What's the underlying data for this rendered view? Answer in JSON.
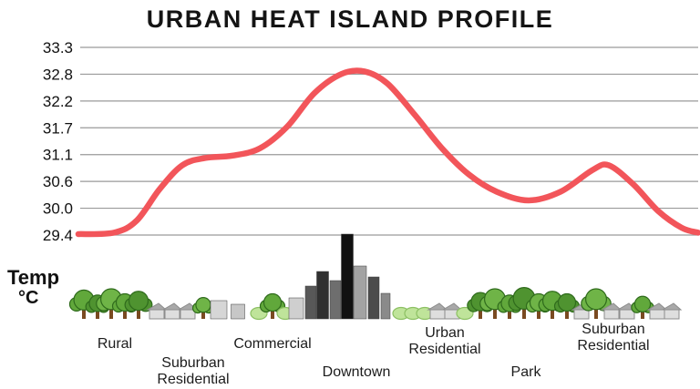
{
  "title": "URBAN HEAT ISLAND PROFILE",
  "y_axis": {
    "word": "Temp",
    "unit": "°C"
  },
  "chart_data": {
    "type": "line",
    "title": "URBAN HEAT ISLAND PROFILE",
    "ylabel": "Temp °C",
    "yticks": [
      "33.3",
      "32.8",
      "32.2",
      "31.7",
      "31.1",
      "30.6",
      "30.0",
      "29.4"
    ],
    "ylim": [
      29.4,
      33.3
    ],
    "grid": true,
    "legend": false,
    "line_color": "#f2555a",
    "grid_color": "#9a9a9a",
    "categories": [
      "Rural",
      "Suburban Residential",
      "Commercial",
      "Downtown",
      "Urban Residential",
      "Park",
      "Suburban Residential"
    ],
    "values": [
      29.4,
      30.6,
      31.1,
      32.8,
      30.6,
      30.1,
      30.9
    ],
    "zones": [
      {
        "label": "Rural",
        "label_lines": [
          "Rural"
        ],
        "art": "trees",
        "temp": 29.4
      },
      {
        "label": "Suburban Residential",
        "label_lines": [
          "Suburban",
          "Residential"
        ],
        "art": "houses-trees",
        "temp": 30.6
      },
      {
        "label": "Commercial",
        "label_lines": [
          "Commercial"
        ],
        "art": "low-buildings-bushes",
        "temp": 31.1
      },
      {
        "label": "Downtown",
        "label_lines": [
          "Downtown"
        ],
        "art": "skyscrapers",
        "temp": 32.8
      },
      {
        "label": "Urban Residential",
        "label_lines": [
          "Urban",
          "Residential"
        ],
        "art": "bushes-houses",
        "temp": 30.6
      },
      {
        "label": "Park",
        "label_lines": [
          "Park"
        ],
        "art": "trees",
        "temp": 30.1
      },
      {
        "label": "Suburban Residential",
        "label_lines": [
          "Suburban",
          "Residential"
        ],
        "art": "houses-trees",
        "temp": 30.9
      }
    ],
    "curve_points": [
      [
        86,
        29.42
      ],
      [
        125,
        29.45
      ],
      [
        150,
        29.7
      ],
      [
        175,
        30.35
      ],
      [
        200,
        30.85
      ],
      [
        225,
        31.0
      ],
      [
        255,
        31.05
      ],
      [
        285,
        31.2
      ],
      [
        315,
        31.65
      ],
      [
        345,
        32.35
      ],
      [
        375,
        32.75
      ],
      [
        400,
        32.8
      ],
      [
        425,
        32.55
      ],
      [
        455,
        31.9
      ],
      [
        485,
        31.2
      ],
      [
        515,
        30.65
      ],
      [
        545,
        30.3
      ],
      [
        580,
        30.12
      ],
      [
        615,
        30.3
      ],
      [
        650,
        30.75
      ],
      [
        668,
        30.85
      ],
      [
        695,
        30.45
      ],
      [
        722,
        29.9
      ],
      [
        748,
        29.55
      ],
      [
        766,
        29.45
      ]
    ]
  }
}
